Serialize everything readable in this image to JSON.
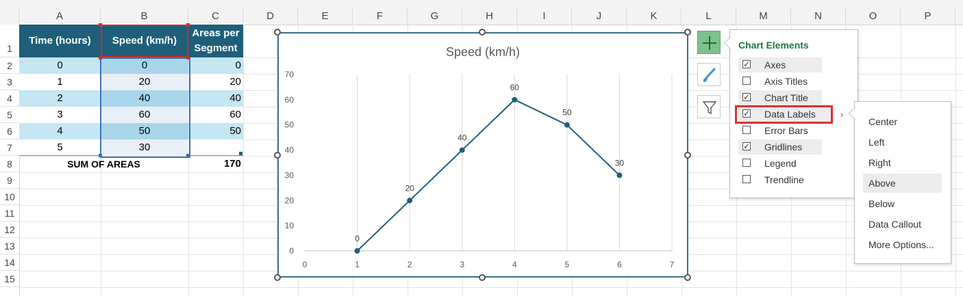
{
  "columns": [
    "A",
    "B",
    "C",
    "D",
    "E",
    "F",
    "G",
    "H",
    "I",
    "J",
    "K",
    "L",
    "M",
    "N",
    "O",
    "P"
  ],
  "rows": [
    "1",
    "2",
    "3",
    "4",
    "5",
    "6",
    "7",
    "8",
    "9",
    "10",
    "11",
    "12",
    "13",
    "14",
    "15"
  ],
  "table": {
    "headers": [
      "Time (hours)",
      "Speed (km/h)",
      "Areas per Segment"
    ],
    "data": [
      [
        "0",
        "0",
        "0"
      ],
      [
        "1",
        "20",
        "20"
      ],
      [
        "2",
        "40",
        "40"
      ],
      [
        "3",
        "60",
        "60"
      ],
      [
        "4",
        "50",
        "50"
      ],
      [
        "5",
        "30",
        ""
      ]
    ],
    "sum_label": "SUM OF AREAS",
    "sum_value": "170"
  },
  "colors": {
    "header": "#1f5f7a",
    "band_light": "#c5e6f3",
    "chart_line": "#1f5f7a",
    "chart_elements_title": "#217346",
    "highlight_box": "#e03030"
  },
  "chart_data": {
    "type": "scatter",
    "title": "Speed (km/h)",
    "x": [
      1,
      2,
      3,
      4,
      5,
      6
    ],
    "y": [
      0,
      20,
      40,
      60,
      50,
      30
    ],
    "data_labels": [
      "0",
      "20",
      "40",
      "60",
      "50",
      "30"
    ],
    "xlim": [
      0,
      7
    ],
    "ylim": [
      0,
      70
    ],
    "x_ticks": [
      "0",
      "1",
      "2",
      "3",
      "4",
      "5",
      "6",
      "7"
    ],
    "y_ticks": [
      "0",
      "10",
      "20",
      "30",
      "40",
      "50",
      "60",
      "70"
    ],
    "grid": "vertical",
    "lines": true,
    "markers": true
  },
  "side_buttons": {
    "icons": [
      "plus-icon",
      "paintbrush-icon",
      "funnel-icon"
    ]
  },
  "chart_elements": {
    "title": "Chart Elements",
    "items": [
      {
        "label": "Axes",
        "checked": true
      },
      {
        "label": "Axis Titles",
        "checked": false
      },
      {
        "label": "Chart Title",
        "checked": true
      },
      {
        "label": "Data Labels",
        "checked": true
      },
      {
        "label": "Error Bars",
        "checked": false
      },
      {
        "label": "Gridlines",
        "checked": true
      },
      {
        "label": "Legend",
        "checked": false
      },
      {
        "label": "Trendline",
        "checked": false
      }
    ]
  },
  "data_labels_menu": {
    "items": [
      "Center",
      "Left",
      "Right",
      "Above",
      "Below",
      "Data Callout",
      "More Options..."
    ],
    "highlighted": "Above"
  }
}
